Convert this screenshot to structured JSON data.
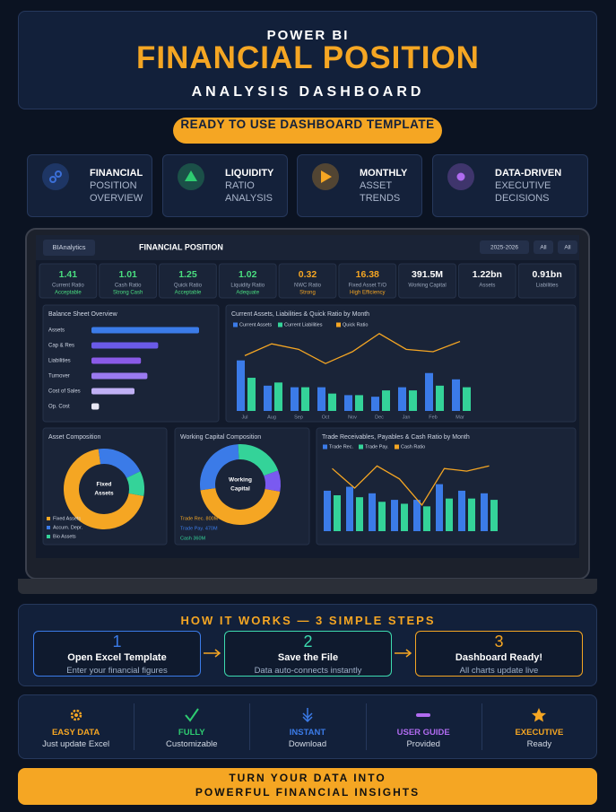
{
  "header": {
    "eyebrow": "POWER BI",
    "title": "FINANCIAL POSITION",
    "subtitle": "ANALYSIS DASHBOARD"
  },
  "badge": "READY TO USE DASHBOARD TEMPLATE",
  "features": [
    {
      "title": "FINANCIAL",
      "lines": [
        "POSITION",
        "OVERVIEW"
      ],
      "color": "#3b6fd8"
    },
    {
      "title": "LIQUIDITY",
      "lines": [
        "RATIO",
        "ANALYSIS"
      ],
      "color": "#2ecc71"
    },
    {
      "title": "MONTHLY",
      "lines": [
        "ASSET",
        "TRENDS"
      ],
      "color": "#f5a623"
    },
    {
      "title": "DATA-DRIVEN",
      "lines": [
        "EXECUTIVE",
        "DECISIONS"
      ],
      "color": "#b06bf0"
    }
  ],
  "dashboard": {
    "brand": "BIAnalytics",
    "title": "FINANCIAL POSITION",
    "filters": [
      "2025-2026",
      "All",
      "All"
    ],
    "kpis": [
      {
        "value": "1.41",
        "label": "Current Ratio",
        "status": "Acceptable",
        "color": "#4ade80"
      },
      {
        "value": "1.01",
        "label": "Cash Ratio",
        "status": "Strong Cash",
        "color": "#4ade80"
      },
      {
        "value": "1.25",
        "label": "Quick Ratio",
        "status": "Acceptable",
        "color": "#4ade80"
      },
      {
        "value": "1.02",
        "label": "Liquidity Ratio",
        "status": "Adequate",
        "color": "#4ade80"
      },
      {
        "value": "0.32",
        "label": "NWC Ratio",
        "status": "Strong",
        "color": "#f5a623"
      },
      {
        "value": "16.38",
        "label": "Fixed Asset T/O",
        "status": "High Efficiency",
        "color": "#f5a623"
      },
      {
        "value": "391.5M",
        "label": "Working Capital",
        "color": "#ffffff"
      },
      {
        "value": "1.22bn",
        "label": "Assets",
        "color": "#ffffff"
      },
      {
        "value": "0.91bn",
        "label": "Liabilities",
        "color": "#ffffff"
      }
    ],
    "balance_sheet": {
      "type": "bar",
      "title": "Balance Sheet Overview",
      "categories": [
        "Assets",
        "Cap & Res",
        "Liabilities",
        "Turnover",
        "Cost of Sales",
        "Op. Cost"
      ],
      "values": [
        100,
        62,
        46,
        52,
        40,
        7
      ],
      "colors": [
        "#3b7be8",
        "#6a5ae8",
        "#8a5ae8",
        "#9a7af0",
        "#c0b0f5",
        "#e8e8f5"
      ],
      "xlim": [
        0,
        100
      ]
    },
    "liquidity": {
      "type": "bar",
      "title": "Current Assets, Liabilities & Quick Ratio by Month",
      "categories": [
        "Jul",
        "Aug",
        "Sep",
        "Oct",
        "Nov",
        "Dec",
        "Jan",
        "Feb",
        "Mar"
      ],
      "series": [
        {
          "name": "Current Assets",
          "color": "#3b7be8",
          "values": [
            64,
            32,
            30,
            30,
            20,
            18,
            30,
            48,
            40
          ]
        },
        {
          "name": "Current Liabilities",
          "color": "#34d399",
          "values": [
            42,
            36,
            30,
            22,
            20,
            26,
            26,
            32,
            30
          ]
        },
        {
          "name": "Quick Ratio",
          "color": "#f5a623",
          "type": "line",
          "values": [
            70,
            85,
            78,
            60,
            75,
            98,
            78,
            75,
            88
          ]
        }
      ],
      "ylim": [
        0,
        100
      ]
    },
    "asset_composition": {
      "type": "pie",
      "title": "Asset Composition",
      "center": [
        "Fixed",
        "Assets"
      ],
      "categories": [
        "Fixed Assets",
        "Accum. Depr.",
        "Bio Assets"
      ],
      "values": [
        70,
        20,
        10
      ],
      "colors": [
        "#f5a623",
        "#3b7be8",
        "#34d399"
      ]
    },
    "working_capital": {
      "type": "pie",
      "title": "Working Capital Composition",
      "center": [
        "Working",
        "Capital"
      ],
      "categories": [
        "Trade Rec.",
        "Trade Pay.",
        "Cash",
        null
      ],
      "values": [
        800,
        470,
        360,
        150
      ],
      "value_labels": [
        "Trade Rec. 800M",
        "Trade Pay. 470M",
        "Cash 360M",
        null
      ],
      "colors": [
        "#f5a623",
        "#3b7be8",
        "#34d399",
        "#7a5af0"
      ]
    },
    "trade": {
      "type": "bar",
      "title": "Trade Receivables, Payables & Cash Ratio by Month",
      "series": [
        {
          "name": "Trade Rec.",
          "color": "#3b7be8",
          "values": [
            62,
            68,
            58,
            48,
            48,
            72,
            62,
            58
          ]
        },
        {
          "name": "Trade Pay.",
          "color": "#34d399",
          "values": [
            55,
            52,
            45,
            42,
            38,
            50,
            50,
            48
          ]
        },
        {
          "name": "Cash Ratio",
          "color": "#f5a623",
          "type": "line",
          "values": [
            96,
            66,
            100,
            80,
            40,
            96,
            92,
            100
          ]
        }
      ],
      "ylim": [
        0,
        110
      ]
    }
  },
  "steps": {
    "title": "HOW IT WORKS — 3 SIMPLE STEPS",
    "items": [
      {
        "number": 1,
        "title": "Open Excel Template",
        "text": "Enter your financial figures",
        "color": "#3b7be8"
      },
      {
        "number": 2,
        "title": "Save the File",
        "text": "Data auto-connects instantly",
        "color": "#3ddbb0"
      },
      {
        "number": 3,
        "title": "Dashboard Ready!",
        "text": "All charts update live",
        "color": "#f5a623"
      }
    ]
  },
  "benefits": [
    {
      "title": "EASY DATA",
      "text": "Just update Excel",
      "color": "#f5a623"
    },
    {
      "title": "FULLY",
      "text": "Customizable",
      "color": "#2ecc71"
    },
    {
      "title": "INSTANT",
      "text": "Download",
      "color": "#3b7be8"
    },
    {
      "title": "USER GUIDE",
      "text": "Provided",
      "color": "#b06bf0"
    },
    {
      "title": "EXECUTIVE",
      "text": "Ready",
      "color": "#f5a623"
    }
  ],
  "footer": [
    "TURN YOUR DATA INTO",
    "POWERFUL FINANCIAL INSIGHTS"
  ]
}
